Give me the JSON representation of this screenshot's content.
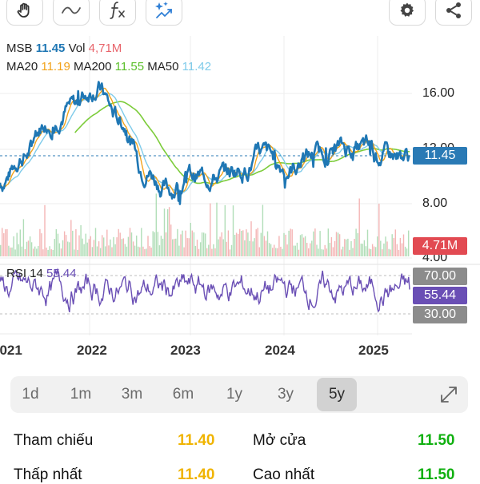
{
  "toolbar": {
    "left_icons": [
      "hand-icon",
      "wave-line-icon",
      "function-fx-icon",
      "sparkle-magic-icon"
    ],
    "right_icons": [
      "gear-icon",
      "share-icon"
    ]
  },
  "legend": {
    "symbol_key": "MSB",
    "symbol_val": "11.45",
    "vol_key": "Vol",
    "vol_val": "4,71M",
    "ma20_key": "MA20",
    "ma20_val": "11.19",
    "ma200_key": "MA200",
    "ma200_val": "11.55",
    "ma50_key": "MA50",
    "ma50_val": "11.42"
  },
  "rsi_legend": {
    "key": "RSI 14",
    "val": "55.44"
  },
  "price_axis": {
    "labels": [
      "16.00",
      "12.00",
      "8.00",
      "4.00"
    ]
  },
  "price_badge": "11.45",
  "volume_badge": "4.71M",
  "rsi_axis": {
    "upper": "70.00",
    "current": "55.44",
    "lower": "30.00"
  },
  "x_axis": {
    "labels": [
      "2021",
      "2022",
      "2023",
      "2024",
      "2025"
    ]
  },
  "colors": {
    "price": "#1f77b4",
    "ma20": "#f2a31b",
    "ma50": "#7fcbea",
    "ma200": "#7ccc3a",
    "rsi": "#6a4fb5",
    "vol_up": "#9ed6a6",
    "vol_down": "#f1a3a3",
    "badge_price": "#2a7ab5",
    "badge_vol": "#e24a52",
    "badge_rsi_current": "#6a4fb5",
    "badge_rsi_bound": "#8c8c8c",
    "stat_yellow": "#f0b400",
    "stat_green": "#10b010"
  },
  "periods": {
    "labels": [
      "1d",
      "1m",
      "3m",
      "6m",
      "1y",
      "3y",
      "5y"
    ],
    "active": "5y"
  },
  "stats": {
    "reference_label": "Tham chiếu",
    "reference_value": "11.40",
    "open_label": "Mở cửa",
    "open_value": "11.50",
    "low_label": "Thấp nhất",
    "low_value": "11.40",
    "high_label": "Cao nhất",
    "high_value": "11.50"
  },
  "chart_data": [
    {
      "type": "line",
      "title": "MSB",
      "x_range": [
        "2021",
        "2025"
      ],
      "y_range": [
        4,
        17
      ],
      "series": [
        {
          "name": "MSB",
          "x": [
            "2021-01",
            "2021-04",
            "2021-07",
            "2021-10",
            "2022-01",
            "2022-04",
            "2022-07",
            "2022-10",
            "2023-01",
            "2023-04",
            "2023-07",
            "2023-10",
            "2024-01",
            "2024-04",
            "2024-07",
            "2024-10",
            "2025-01",
            "2025-03"
          ],
          "values": [
            9.5,
            11.5,
            14.0,
            15.0,
            16.5,
            14.0,
            10.5,
            9.0,
            10.0,
            10.0,
            10.5,
            11.5,
            10.5,
            11.5,
            12.0,
            12.0,
            11.5,
            11.45
          ]
        },
        {
          "name": "MA20",
          "values": [
            9.6,
            11.3,
            13.8,
            15.0,
            16.2,
            14.2,
            11.0,
            9.5,
            9.8,
            10.0,
            10.4,
            11.3,
            10.7,
            11.4,
            11.8,
            11.8,
            11.4,
            11.19
          ]
        },
        {
          "name": "MA50",
          "values": [
            9.8,
            11.0,
            13.3,
            14.8,
            15.8,
            14.5,
            11.5,
            9.8,
            9.8,
            10.0,
            10.3,
            11.1,
            10.8,
            11.3,
            11.7,
            11.7,
            11.5,
            11.42
          ]
        },
        {
          "name": "MA200",
          "values": [
            null,
            null,
            null,
            null,
            null,
            13.0,
            13.5,
            11.0,
            10.2,
            9.8,
            9.9,
            10.3,
            10.6,
            10.9,
            11.2,
            11.4,
            11.5,
            11.55
          ]
        }
      ]
    },
    {
      "type": "bar",
      "title": "Vol",
      "series": [
        {
          "name": "Vol",
          "last_value": "4,71M"
        }
      ]
    },
    {
      "type": "line",
      "title": "RSI 14",
      "y_range": [
        20,
        85
      ],
      "series": [
        {
          "name": "RSI 14",
          "last_value": 55.44
        }
      ],
      "reference_lines": [
        70,
        30
      ]
    }
  ]
}
